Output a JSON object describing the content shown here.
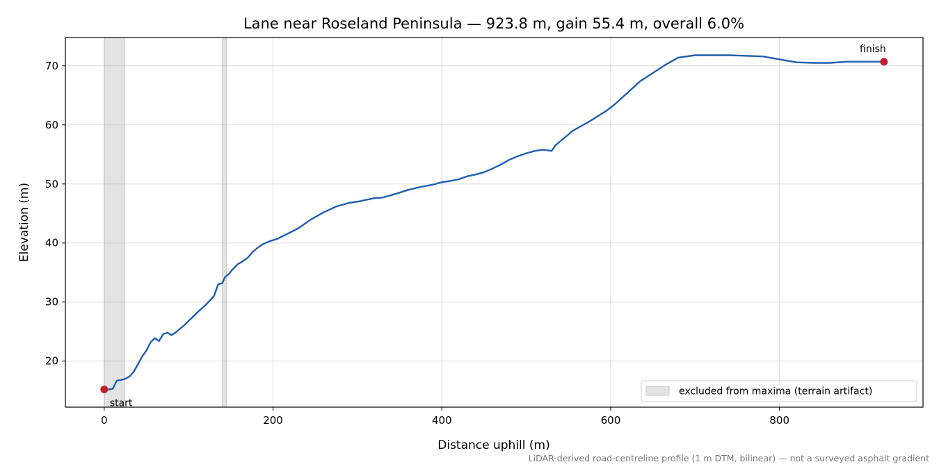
{
  "chart_data": {
    "type": "line",
    "title": "Lane near Roseland Peninsula — 923.8 m, gain 55.4 m, overall 6.0%",
    "xlabel": "Distance uphill (m)",
    "ylabel": "Elevation (m)",
    "xlim": [
      -46,
      970
    ],
    "ylim": [
      12.2,
      74.8
    ],
    "xticks": [
      0,
      200,
      400,
      600,
      800
    ],
    "yticks": [
      20,
      30,
      40,
      50,
      60,
      70
    ],
    "grid": true,
    "line_color": "#1f5fb0",
    "series": [
      {
        "x": [
          0,
          5,
          10,
          15,
          20,
          25,
          30,
          35,
          40,
          45,
          50,
          55,
          60,
          65,
          70,
          75,
          80,
          85,
          90,
          95,
          100,
          110,
          120,
          130,
          135,
          140,
          143,
          148,
          152,
          158,
          163,
          170,
          176,
          182,
          188,
          196,
          205,
          215,
          230,
          245,
          260,
          275,
          290,
          300,
          310,
          320,
          330,
          345,
          360,
          375,
          390,
          400,
          410,
          420,
          430,
          440,
          450,
          460,
          470,
          480,
          490,
          500,
          510,
          520,
          530,
          535,
          545,
          555,
          565,
          575,
          585,
          595,
          605,
          615,
          625,
          635,
          650,
          665,
          680,
          700,
          720,
          740,
          760,
          780,
          800,
          820,
          840,
          860,
          880,
          900,
          923.8
        ],
        "values": [
          15.2,
          15.2,
          15.3,
          16.7,
          16.8,
          17.0,
          17.4,
          18.2,
          19.5,
          20.8,
          21.8,
          23.2,
          23.9,
          23.4,
          24.6,
          24.8,
          24.4,
          24.9,
          25.5,
          26.1,
          26.8,
          28.2,
          29.5,
          31.0,
          33.0,
          33.2,
          34.2,
          34.8,
          35.5,
          36.4,
          36.8,
          37.5,
          38.5,
          39.2,
          39.8,
          40.3,
          40.7,
          41.4,
          42.5,
          44.0,
          45.2,
          46.2,
          46.8,
          47.0,
          47.3,
          47.6,
          47.7,
          48.3,
          49.0,
          49.5,
          49.9,
          50.3,
          50.5,
          50.8,
          51.3,
          51.6,
          52.0,
          52.6,
          53.3,
          54.1,
          54.7,
          55.2,
          55.6,
          55.8,
          55.6,
          56.6,
          57.8,
          59.0,
          59.8,
          60.6,
          61.5,
          62.4,
          63.5,
          64.8,
          66.1,
          67.4,
          68.8,
          70.2,
          71.4,
          71.8,
          71.8,
          71.8,
          71.7,
          71.6,
          71.1,
          70.6,
          70.5,
          70.5,
          70.7,
          70.7,
          70.7
        ]
      }
    ],
    "shaded_regions": [
      [
        0,
        24
      ],
      [
        140,
        145
      ]
    ],
    "points": [
      {
        "label": "start",
        "x": 0,
        "y": 15.2,
        "color": "#c41e2a"
      },
      {
        "label": "finish",
        "x": 923.8,
        "y": 70.7,
        "color": "#c41e2a"
      }
    ],
    "legend": {
      "label": "excluded from maxima (terrain artifact)",
      "placement": "lower-right",
      "swatch_color": "#e3e3e3"
    },
    "footnote": "LiDAR-derived road-centreline profile (1 m DTM, bilinear) — not a surveyed asphalt gradient"
  }
}
